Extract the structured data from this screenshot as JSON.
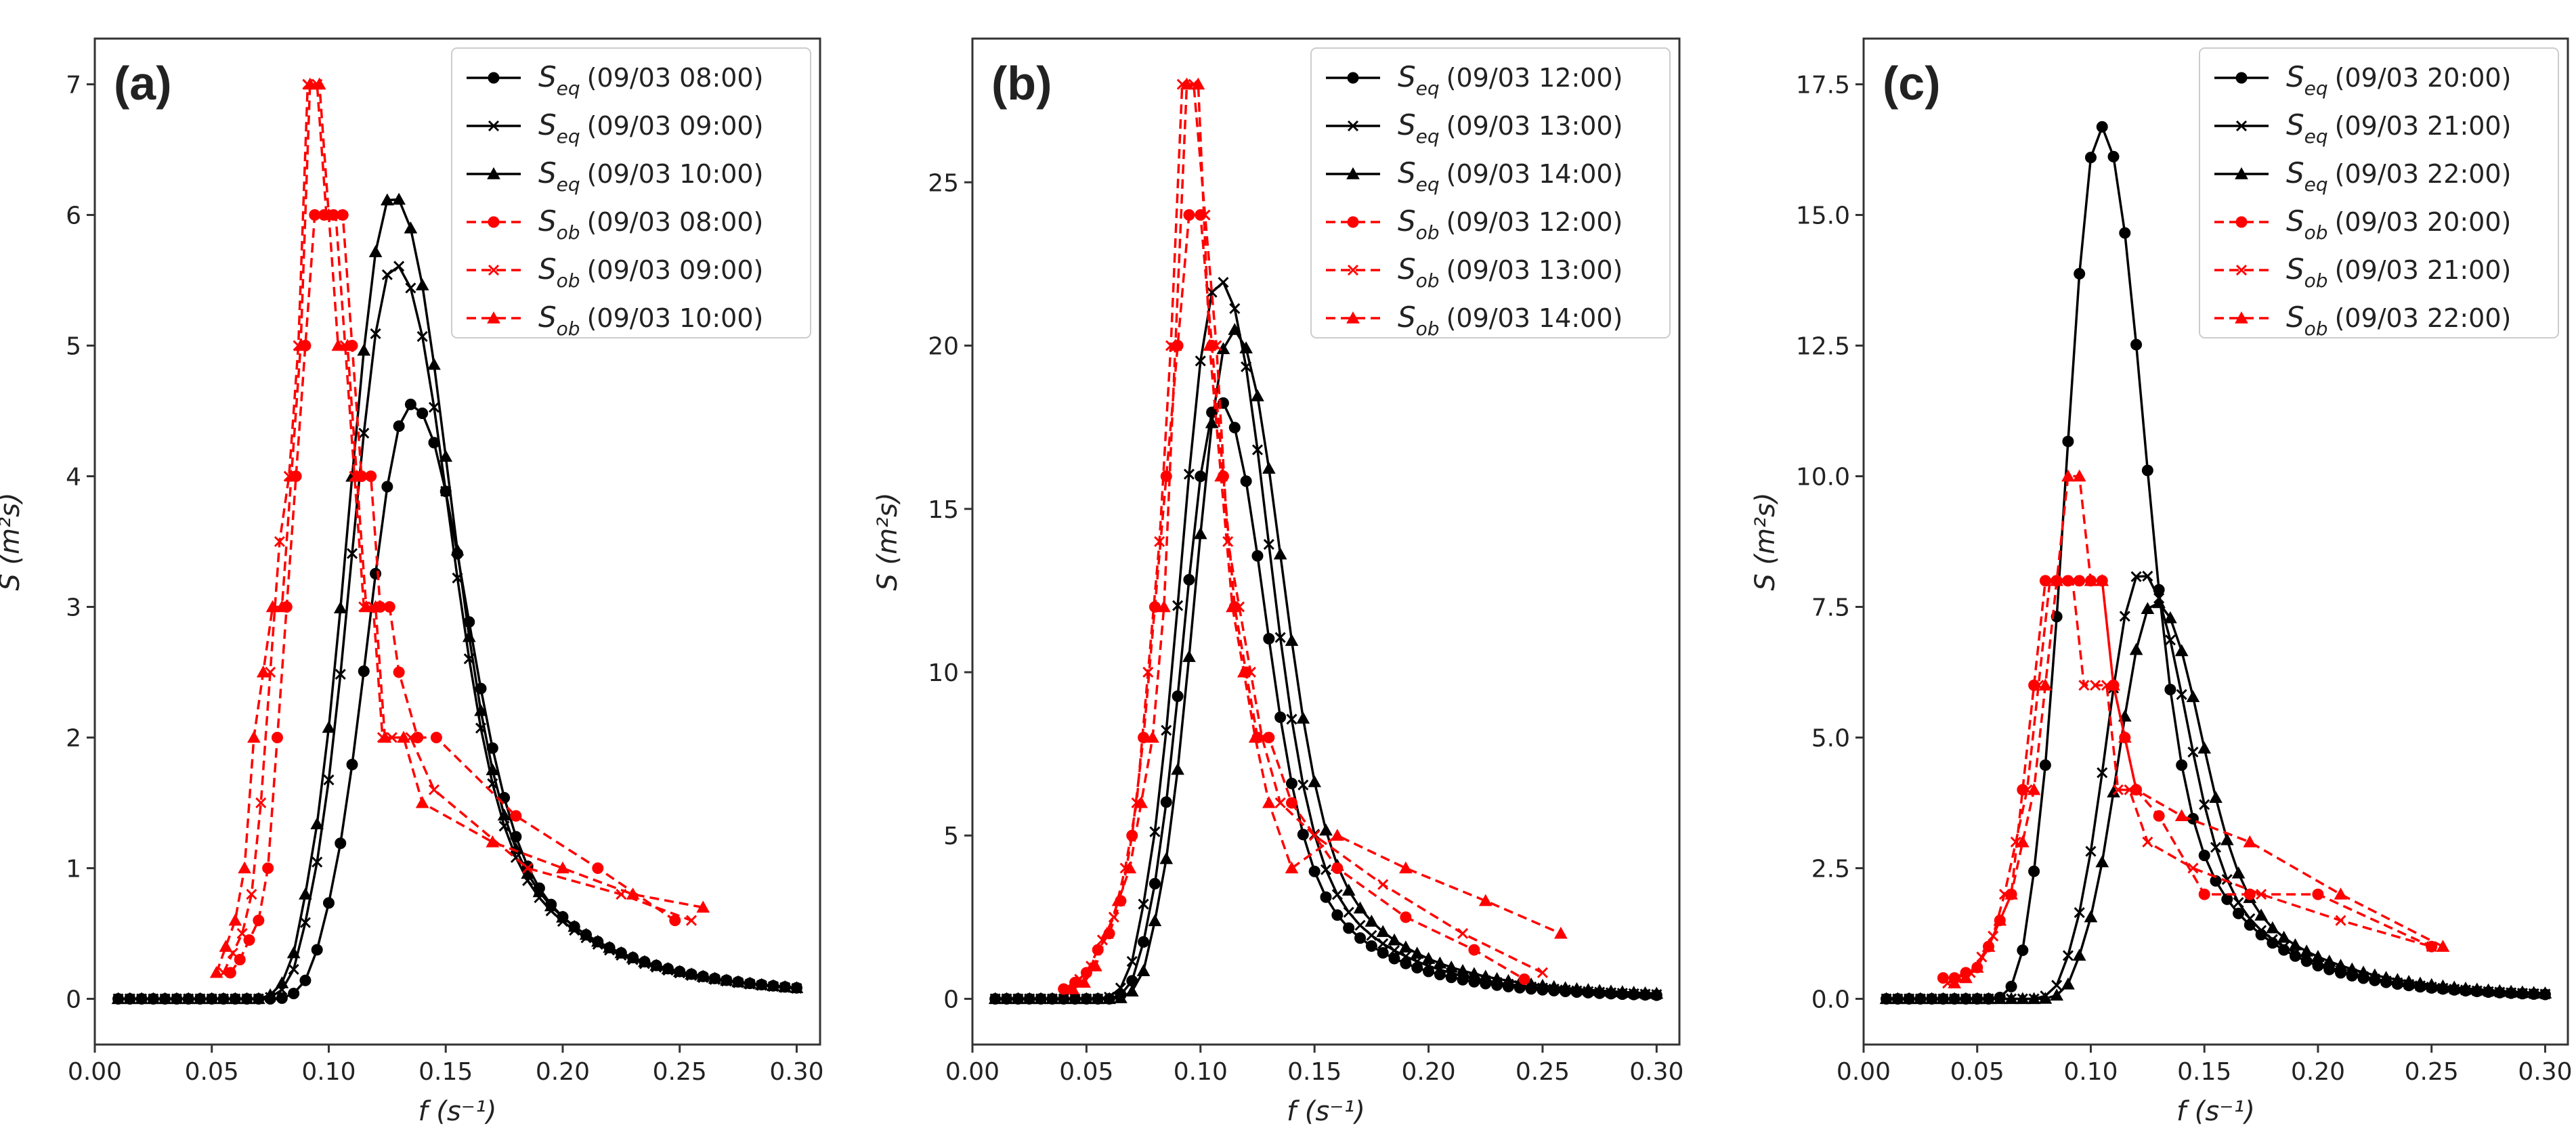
{
  "chart_data": [
    {
      "type": "line",
      "panel_label": "(a)",
      "xlabel": "f (s⁻¹)",
      "ylabel": "S (m²s)",
      "xlim": [
        0.0,
        0.31
      ],
      "ylim": [
        -0.35,
        7.35
      ],
      "xticks": [
        0.0,
        0.05,
        0.1,
        0.15,
        0.2,
        0.25,
        0.3
      ],
      "xtick_labels": [
        "0.00",
        "0.05",
        "0.10",
        "0.15",
        "0.20",
        "0.25",
        "0.30"
      ],
      "yticks": [
        0,
        1,
        2,
        3,
        4,
        5,
        6,
        7
      ],
      "ytick_labels": [
        "0",
        "1",
        "2",
        "3",
        "4",
        "5",
        "6",
        "7"
      ],
      "legend_position": "top-right",
      "series": [
        {
          "name": "eq",
          "time": "(09/03 08:00)",
          "color": "#000000",
          "dashed": false,
          "marker": "circle",
          "kind": "eq",
          "peak": 0.135,
          "peak_value": 4.55,
          "start": 0.078,
          "cutoff": 0.075
        },
        {
          "name": "eq",
          "time": "(09/03 09:00)",
          "color": "#000000",
          "dashed": false,
          "marker": "x",
          "kind": "eq",
          "peak": 0.128,
          "peak_value": 5.62,
          "start": 0.072,
          "cutoff": 0.075
        },
        {
          "name": "eq",
          "time": "(09/03 10:00)",
          "color": "#000000",
          "dashed": false,
          "marker": "triangle",
          "kind": "eq",
          "peak": 0.127,
          "peak_value": 6.15,
          "start": 0.07,
          "cutoff": 0.075
        },
        {
          "name": "ob",
          "time": "(09/03 08:00)",
          "color": "#ff0000",
          "dashed": true,
          "marker": "circle",
          "kind": "ob",
          "x": [
            0.058,
            0.062,
            0.066,
            0.07,
            0.074,
            0.078,
            0.082,
            0.086,
            0.09,
            0.094,
            0.098,
            0.102,
            0.106,
            0.11,
            0.114,
            0.118,
            0.122,
            0.126,
            0.13,
            0.138,
            0.146,
            0.18,
            0.215,
            0.248
          ],
          "y": [
            0.2,
            0.3,
            0.45,
            0.6,
            1.0,
            2.0,
            3.0,
            4.0,
            5.0,
            6.0,
            6.0,
            6.0,
            6.0,
            5.0,
            4.0,
            4.0,
            3.0,
            3.0,
            2.5,
            2.0,
            2.0,
            1.4,
            1.0,
            0.6
          ]
        },
        {
          "name": "ob",
          "time": "(09/03 09:00)",
          "color": "#ff0000",
          "dashed": true,
          "marker": "x",
          "kind": "ob",
          "x": [
            0.055,
            0.059,
            0.063,
            0.067,
            0.071,
            0.075,
            0.079,
            0.083,
            0.087,
            0.091,
            0.095,
            0.099,
            0.103,
            0.107,
            0.111,
            0.115,
            0.119,
            0.123,
            0.127,
            0.135,
            0.145,
            0.185,
            0.225,
            0.255
          ],
          "y": [
            0.2,
            0.35,
            0.5,
            0.8,
            1.5,
            2.5,
            3.5,
            4.0,
            5.0,
            7.0,
            7.0,
            6.0,
            6.0,
            5.0,
            4.0,
            3.0,
            3.0,
            2.0,
            2.0,
            2.0,
            1.6,
            1.0,
            0.8,
            0.6
          ]
        },
        {
          "name": "ob",
          "time": "(09/03 10:00)",
          "color": "#ff0000",
          "dashed": true,
          "marker": "triangle",
          "kind": "ob",
          "x": [
            0.052,
            0.056,
            0.06,
            0.064,
            0.068,
            0.072,
            0.076,
            0.08,
            0.084,
            0.088,
            0.092,
            0.096,
            0.1,
            0.104,
            0.108,
            0.112,
            0.116,
            0.12,
            0.124,
            0.132,
            0.14,
            0.17,
            0.2,
            0.23,
            0.26
          ],
          "y": [
            0.2,
            0.4,
            0.6,
            1.0,
            2.0,
            2.5,
            3.0,
            3.0,
            4.0,
            5.0,
            7.0,
            7.0,
            6.0,
            5.0,
            5.0,
            4.0,
            3.0,
            3.0,
            2.0,
            2.0,
            1.5,
            1.2,
            1.0,
            0.8,
            0.7
          ]
        }
      ]
    },
    {
      "type": "line",
      "panel_label": "(b)",
      "xlabel": "f (s⁻¹)",
      "ylabel": "S (m²s)",
      "xlim": [
        0.0,
        0.31
      ],
      "ylim": [
        -1.4,
        29.4
      ],
      "xticks": [
        0.0,
        0.05,
        0.1,
        0.15,
        0.2,
        0.25,
        0.3
      ],
      "xtick_labels": [
        "0.00",
        "0.05",
        "0.10",
        "0.15",
        "0.20",
        "0.25",
        "0.30"
      ],
      "yticks": [
        0,
        5,
        10,
        15,
        20,
        25
      ],
      "ytick_labels": [
        "0",
        "5",
        "10",
        "15",
        "20",
        "25"
      ],
      "legend_position": "top-right",
      "series": [
        {
          "name": "eq",
          "time": "(09/03 12:00)",
          "color": "#000000",
          "dashed": false,
          "marker": "circle",
          "kind": "eq",
          "peak": 0.108,
          "peak_value": 18.3,
          "start": 0.06,
          "cutoff": 0.06
        },
        {
          "name": "eq",
          "time": "(09/03 13:00)",
          "color": "#000000",
          "dashed": false,
          "marker": "x",
          "kind": "eq",
          "peak": 0.108,
          "peak_value": 22.0,
          "start": 0.057,
          "cutoff": 0.06
        },
        {
          "name": "eq",
          "time": "(09/03 14:00)",
          "color": "#000000",
          "dashed": false,
          "marker": "triangle",
          "kind": "eq",
          "peak": 0.114,
          "peak_value": 20.5,
          "start": 0.063,
          "cutoff": 0.06
        },
        {
          "name": "ob",
          "time": "(09/03 12:00)",
          "color": "#ff0000",
          "dashed": true,
          "marker": "circle",
          "kind": "ob",
          "x": [
            0.04,
            0.045,
            0.05,
            0.055,
            0.06,
            0.065,
            0.07,
            0.075,
            0.08,
            0.085,
            0.09,
            0.095,
            0.1,
            0.105,
            0.11,
            0.115,
            0.12,
            0.125,
            0.13,
            0.14,
            0.16,
            0.19,
            0.22,
            0.242
          ],
          "y": [
            0.3,
            0.5,
            0.8,
            1.5,
            2.0,
            3.0,
            5.0,
            8.0,
            12.0,
            16.0,
            20.0,
            24.0,
            24.0,
            20.0,
            16.0,
            12.0,
            10.0,
            8.0,
            8.0,
            6.0,
            4.0,
            2.5,
            1.5,
            0.6
          ]
        },
        {
          "name": "ob",
          "time": "(09/03 13:00)",
          "color": "#ff0000",
          "dashed": true,
          "marker": "x",
          "kind": "ob",
          "x": [
            0.042,
            0.047,
            0.052,
            0.057,
            0.062,
            0.067,
            0.072,
            0.077,
            0.082,
            0.087,
            0.092,
            0.097,
            0.102,
            0.107,
            0.112,
            0.117,
            0.122,
            0.127,
            0.135,
            0.15,
            0.18,
            0.215,
            0.25
          ],
          "y": [
            0.3,
            0.6,
            1.0,
            1.8,
            2.5,
            4.0,
            6.0,
            10.0,
            14.0,
            20.0,
            28.0,
            28.0,
            24.0,
            20.0,
            14.0,
            12.0,
            10.0,
            8.0,
            6.0,
            5.0,
            3.5,
            2.0,
            0.8
          ]
        },
        {
          "name": "ob",
          "time": "(09/03 14:00)",
          "color": "#ff0000",
          "dashed": true,
          "marker": "triangle",
          "kind": "ob",
          "x": [
            0.044,
            0.049,
            0.054,
            0.059,
            0.064,
            0.069,
            0.074,
            0.079,
            0.084,
            0.089,
            0.094,
            0.099,
            0.104,
            0.109,
            0.114,
            0.119,
            0.124,
            0.13,
            0.14,
            0.16,
            0.19,
            0.225,
            0.258
          ],
          "y": [
            0.3,
            0.5,
            1.0,
            2.0,
            3.0,
            4.0,
            6.0,
            8.0,
            12.0,
            20.0,
            28.0,
            28.0,
            20.0,
            16.0,
            12.0,
            10.0,
            8.0,
            6.0,
            4.0,
            5.0,
            4.0,
            3.0,
            2.0
          ]
        }
      ]
    },
    {
      "type": "line",
      "panel_label": "(c)",
      "xlabel": "f (s⁻¹)",
      "ylabel": "S (m²s)",
      "xlim": [
        0.0,
        0.31
      ],
      "ylim": [
        -0.875,
        18.375
      ],
      "xticks": [
        0.0,
        0.05,
        0.1,
        0.15,
        0.2,
        0.25,
        0.3
      ],
      "xtick_labels": [
        "0.00",
        "0.05",
        "0.10",
        "0.15",
        "0.20",
        "0.25",
        "0.30"
      ],
      "yticks": [
        0.0,
        2.5,
        5.0,
        7.5,
        10.0,
        12.5,
        15.0,
        17.5
      ],
      "ytick_labels": [
        "0.0",
        "2.5",
        "5.0",
        "7.5",
        "10.0",
        "12.5",
        "15.0",
        "17.5"
      ],
      "legend_position": "top-right",
      "series": [
        {
          "name": "eq",
          "time": "(09/03 20:00)",
          "color": "#000000",
          "dashed": false,
          "marker": "circle",
          "kind": "eq",
          "peak": 0.104,
          "peak_value": 16.7,
          "start": 0.058,
          "cutoff": 0.06
        },
        {
          "name": "eq",
          "time": "(09/03 21:00)",
          "color": "#000000",
          "dashed": false,
          "marker": "x",
          "kind": "eq",
          "peak": 0.122,
          "peak_value": 8.15,
          "start": 0.075,
          "cutoff": 0.06
        },
        {
          "name": "eq",
          "time": "(09/03 22:00)",
          "color": "#000000",
          "dashed": false,
          "marker": "triangle",
          "kind": "eq",
          "peak": 0.128,
          "peak_value": 7.6,
          "start": 0.079,
          "cutoff": 0.06
        },
        {
          "name": "ob",
          "time": "(09/03 20:00)",
          "color": "#ff0000",
          "dashed": true,
          "marker": "circle",
          "kind": "ob",
          "x": [
            0.035,
            0.04,
            0.045,
            0.05,
            0.055,
            0.06,
            0.065,
            0.07,
            0.075,
            0.08,
            0.085,
            0.09,
            0.095,
            0.1,
            0.105,
            0.11,
            0.115,
            0.12,
            0.13,
            0.15,
            0.17,
            0.2,
            0.25
          ],
          "y": [
            0.4,
            0.4,
            0.5,
            0.6,
            1.0,
            1.5,
            2.0,
            4.0,
            6.0,
            8.0,
            8.0,
            8.0,
            8.0,
            8.0,
            8.0,
            6.0,
            5.0,
            4.0,
            3.5,
            2.0,
            2.0,
            2.0,
            1.0
          ]
        },
        {
          "name": "ob",
          "time": "(09/03 21:00)",
          "color": "#ff0000",
          "dashed": true,
          "marker": "x",
          "kind": "ob",
          "x": [
            0.037,
            0.042,
            0.047,
            0.052,
            0.057,
            0.062,
            0.067,
            0.072,
            0.077,
            0.082,
            0.087,
            0.092,
            0.097,
            0.102,
            0.107,
            0.112,
            0.117,
            0.125,
            0.145,
            0.175,
            0.21,
            0.25
          ],
          "y": [
            0.3,
            0.4,
            0.5,
            0.8,
            1.2,
            2.0,
            3.0,
            4.0,
            6.0,
            8.0,
            8.0,
            8.0,
            6.0,
            6.0,
            6.0,
            4.0,
            4.0,
            3.0,
            2.5,
            2.0,
            1.5,
            1.0
          ]
        },
        {
          "name": "ob",
          "time": "(09/03 22:00)",
          "color": "#ff0000",
          "dashed": true,
          "marker": "triangle",
          "kind": "ob",
          "x": [
            0.04,
            0.045,
            0.05,
            0.055,
            0.06,
            0.065,
            0.07,
            0.075,
            0.08,
            0.085,
            0.09,
            0.095,
            0.1,
            0.105,
            0.11,
            0.115,
            0.12,
            0.14,
            0.17,
            0.21,
            0.255
          ],
          "y": [
            0.3,
            0.4,
            0.6,
            1.0,
            1.5,
            2.0,
            3.0,
            4.0,
            6.0,
            8.0,
            10.0,
            10.0,
            8.0,
            8.0,
            6.0,
            5.0,
            4.0,
            3.5,
            3.0,
            2.0,
            1.0
          ]
        }
      ]
    }
  ]
}
